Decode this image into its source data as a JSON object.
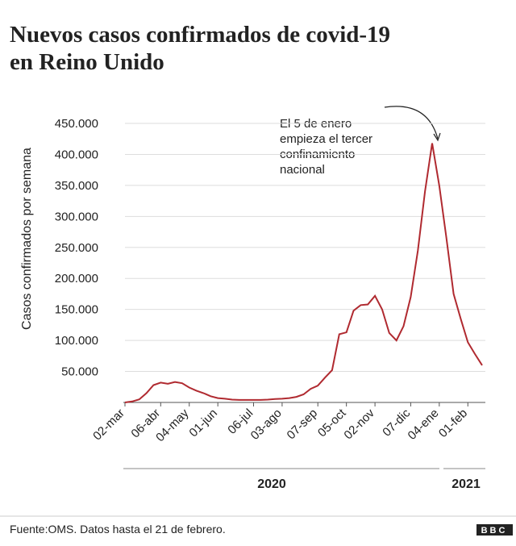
{
  "chart_data": {
    "type": "line",
    "title": [
      "Nuevos casos confirmados de covid-19",
      "en Reino Unido"
    ],
    "y_label": "Casos confirmados por semana",
    "annotation": [
      "El 5 de enero",
      "empieza el tercer",
      "confinamiento",
      "nacional"
    ],
    "x_groups": [
      "2020",
      "2021"
    ],
    "source": "Fuente:OMS. Datos hasta el 21 de febrero.",
    "logo": "BBC",
    "categories": [
      "02-mar",
      null,
      null,
      null,
      null,
      "06-abr",
      null,
      null,
      null,
      "04-may",
      null,
      null,
      null,
      "01-jun",
      null,
      null,
      null,
      null,
      "06-jul",
      null,
      null,
      null,
      "03-ago",
      null,
      null,
      null,
      null,
      "07-sep",
      null,
      null,
      null,
      "05-oct",
      null,
      null,
      null,
      "02-nov",
      null,
      null,
      null,
      null,
      "07-dic",
      null,
      null,
      null,
      "04-ene",
      null,
      null,
      null,
      "01-feb",
      null,
      null
    ],
    "series": [
      {
        "name": "Casos",
        "color": "#b02a30",
        "values": [
          0,
          1500,
          5000,
          15000,
          28000,
          32000,
          30000,
          33000,
          31000,
          24000,
          19000,
          15000,
          10000,
          7000,
          6000,
          4500,
          4000,
          4000,
          4000,
          4000,
          4500,
          5500,
          6000,
          7000,
          9000,
          13000,
          22000,
          27000,
          40000,
          52000,
          110000,
          113000,
          148000,
          157000,
          158000,
          172000,
          150000,
          112000,
          100000,
          123000,
          170000,
          245000,
          340000,
          418000,
          350000,
          265000,
          175000,
          135000,
          97000,
          78000,
          60000
        ]
      }
    ],
    "ylim": [
      0,
      450000
    ],
    "yticks": [
      {
        "value": 50000,
        "label": "50.000"
      },
      {
        "value": 100000,
        "label": "100.000"
      },
      {
        "value": 150000,
        "label": "150.000"
      },
      {
        "value": 200000,
        "label": "200.000"
      },
      {
        "value": 250000,
        "label": "250.000"
      },
      {
        "value": 300000,
        "label": "300.000"
      },
      {
        "value": 350000,
        "label": "350.000"
      },
      {
        "value": 400000,
        "label": "400.000"
      },
      {
        "value": 450000,
        "label": "450.000"
      }
    ],
    "grid": true
  }
}
